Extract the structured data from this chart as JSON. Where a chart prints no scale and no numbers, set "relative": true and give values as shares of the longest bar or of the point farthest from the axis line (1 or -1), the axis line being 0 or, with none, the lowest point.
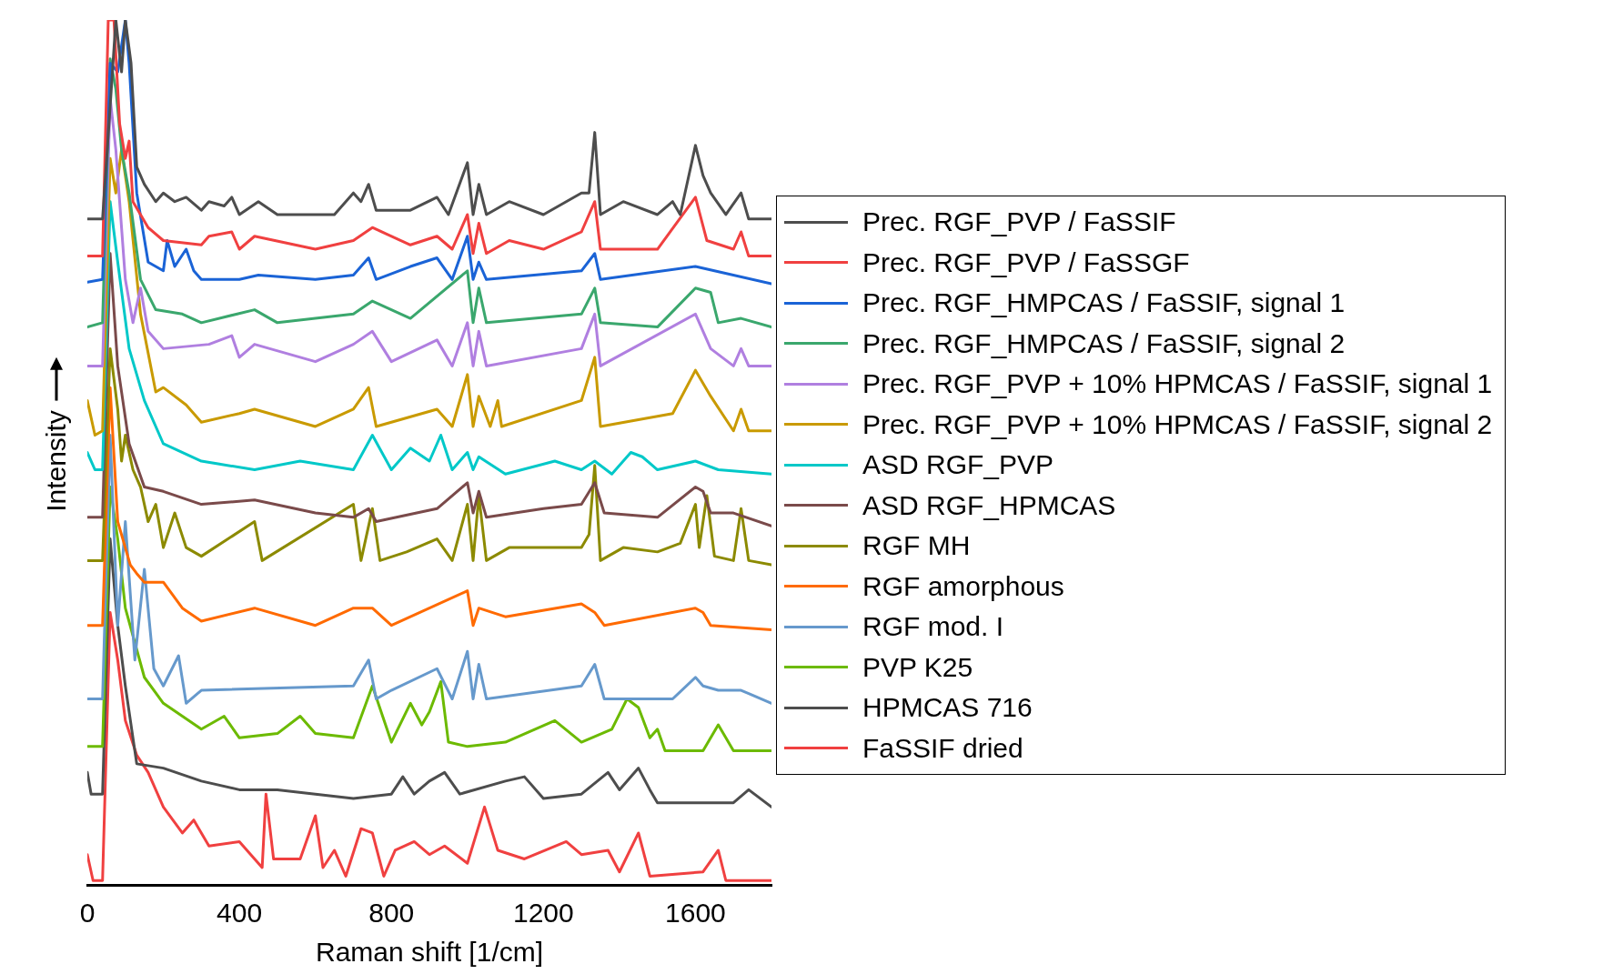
{
  "chart_data": {
    "type": "line",
    "relative": true,
    "xlabel": "Raman shift [1/cm]",
    "ylabel": "Intensity",
    "xlim": [
      0,
      1800
    ],
    "xticks": [
      0,
      400,
      800,
      1200,
      1600
    ],
    "grid": false,
    "legend": "right",
    "marker": "none",
    "line_style": "solid",
    "series": [
      {
        "name": "Prec. RGF_PVP / FaSSIF",
        "color": "#4d4d4d",
        "x": [
          0,
          40,
          60,
          75,
          90,
          100,
          115,
          130,
          150,
          180,
          200,
          230,
          260,
          300,
          320,
          360,
          380,
          400,
          450,
          500,
          600,
          650,
          680,
          700,
          720,
          740,
          760,
          850,
          920,
          950,
          1000,
          1015,
          1030,
          1050,
          1110,
          1200,
          1260,
          1300,
          1320,
          1335,
          1350,
          1410,
          1500,
          1540,
          1560,
          1600,
          1620,
          1640,
          1680,
          1720,
          1740,
          1800
        ],
        "values": [
          0.77,
          0.77,
          0.9,
          1.0,
          0.94,
          1.0,
          0.95,
          0.83,
          0.81,
          0.79,
          0.8,
          0.79,
          0.795,
          0.78,
          0.79,
          0.785,
          0.795,
          0.775,
          0.79,
          0.775,
          0.775,
          0.775,
          0.79,
          0.8,
          0.79,
          0.81,
          0.78,
          0.78,
          0.795,
          0.775,
          0.835,
          0.775,
          0.81,
          0.775,
          0.79,
          0.775,
          0.79,
          0.8,
          0.8,
          0.87,
          0.775,
          0.79,
          0.775,
          0.79,
          0.775,
          0.855,
          0.82,
          0.8,
          0.775,
          0.8,
          0.77,
          0.77
        ]
      },
      {
        "name": "Prec. RGF_PVP / FaSSGF",
        "color": "#f04040",
        "x": [
          0,
          40,
          55,
          70,
          85,
          100,
          110,
          120,
          160,
          200,
          300,
          320,
          380,
          400,
          440,
          600,
          700,
          750,
          850,
          920,
          960,
          1000,
          1015,
          1030,
          1050,
          1110,
          1200,
          1300,
          1335,
          1350,
          1500,
          1600,
          1630,
          1700,
          1720,
          1740,
          1800
        ],
        "values": [
          0.727,
          0.727,
          1.0,
          1.0,
          0.88,
          0.84,
          0.86,
          0.79,
          0.76,
          0.745,
          0.74,
          0.75,
          0.755,
          0.735,
          0.75,
          0.735,
          0.745,
          0.76,
          0.74,
          0.75,
          0.735,
          0.775,
          0.73,
          0.765,
          0.73,
          0.745,
          0.735,
          0.755,
          0.79,
          0.735,
          0.735,
          0.795,
          0.745,
          0.735,
          0.755,
          0.727,
          0.727
        ]
      },
      {
        "name": "Prec. RGF_HMPCAS / FaSSIF, signal 1",
        "color": "#1a63d6",
        "x": [
          0,
          40,
          60,
          80,
          100,
          110,
          130,
          160,
          200,
          210,
          230,
          260,
          280,
          300,
          400,
          450,
          600,
          700,
          740,
          760,
          850,
          920,
          960,
          1000,
          1015,
          1030,
          1050,
          1300,
          1335,
          1350,
          1600,
          1800
        ],
        "values": [
          0.697,
          0.7,
          0.95,
          0.94,
          1.0,
          0.95,
          0.8,
          0.72,
          0.71,
          0.745,
          0.715,
          0.735,
          0.71,
          0.7,
          0.7,
          0.705,
          0.7,
          0.705,
          0.725,
          0.7,
          0.715,
          0.725,
          0.7,
          0.75,
          0.7,
          0.72,
          0.7,
          0.71,
          0.73,
          0.7,
          0.715,
          0.695
        ]
      },
      {
        "name": "Prec. RGF_HMPCAS / FaSSIF, signal 2",
        "color": "#3aa76d",
        "x": [
          0,
          40,
          60,
          75,
          90,
          110,
          140,
          180,
          250,
          300,
          440,
          500,
          700,
          750,
          850,
          1000,
          1015,
          1030,
          1050,
          1300,
          1335,
          1350,
          1500,
          1600,
          1640,
          1660,
          1720,
          1800
        ],
        "values": [
          0.645,
          0.65,
          0.955,
          0.92,
          0.85,
          0.8,
          0.7,
          0.665,
          0.66,
          0.65,
          0.665,
          0.65,
          0.66,
          0.675,
          0.655,
          0.71,
          0.65,
          0.69,
          0.65,
          0.66,
          0.69,
          0.65,
          0.645,
          0.69,
          0.685,
          0.65,
          0.655,
          0.645
        ]
      },
      {
        "name": "Prec. RGF_PVP + 10% HPMCAS / FaSSIF, signal 1",
        "color": "#b07fe0",
        "x": [
          0,
          40,
          60,
          75,
          100,
          120,
          140,
          160,
          200,
          320,
          380,
          400,
          440,
          600,
          700,
          750,
          800,
          920,
          960,
          1000,
          1015,
          1030,
          1050,
          1300,
          1335,
          1350,
          1600,
          1640,
          1700,
          1720,
          1740,
          1800
        ],
        "values": [
          0.6,
          0.6,
          0.91,
          0.85,
          0.7,
          0.65,
          0.69,
          0.64,
          0.62,
          0.625,
          0.635,
          0.61,
          0.625,
          0.605,
          0.625,
          0.64,
          0.605,
          0.63,
          0.6,
          0.65,
          0.6,
          0.64,
          0.6,
          0.62,
          0.66,
          0.6,
          0.66,
          0.62,
          0.6,
          0.62,
          0.6,
          0.6
        ]
      },
      {
        "name": "Prec. RGF_PVP + 10% HPMCAS / FaSSIF, signal 2",
        "color": "#c99a00",
        "x": [
          0,
          20,
          40,
          60,
          75,
          90,
          110,
          140,
          180,
          200,
          260,
          300,
          400,
          440,
          600,
          700,
          740,
          760,
          920,
          960,
          1000,
          1015,
          1030,
          1060,
          1080,
          1090,
          1300,
          1335,
          1350,
          1540,
          1600,
          1640,
          1700,
          1720,
          1740,
          1800
        ],
        "values": [
          0.56,
          0.52,
          0.525,
          0.84,
          0.8,
          0.85,
          0.79,
          0.66,
          0.57,
          0.575,
          0.555,
          0.535,
          0.545,
          0.55,
          0.53,
          0.55,
          0.575,
          0.53,
          0.55,
          0.53,
          0.59,
          0.53,
          0.565,
          0.53,
          0.56,
          0.53,
          0.56,
          0.61,
          0.53,
          0.545,
          0.595,
          0.565,
          0.525,
          0.55,
          0.525,
          0.525
        ]
      },
      {
        "name": "ASD RGF_PVP",
        "color": "#00c8c8",
        "x": [
          0,
          20,
          40,
          60,
          80,
          110,
          150,
          200,
          300,
          440,
          560,
          700,
          750,
          800,
          850,
          900,
          930,
          960,
          1000,
          1015,
          1030,
          1100,
          1230,
          1300,
          1335,
          1380,
          1430,
          1460,
          1500,
          1600,
          1660,
          1800
        ],
        "values": [
          0.5,
          0.48,
          0.48,
          0.79,
          0.72,
          0.62,
          0.56,
          0.51,
          0.49,
          0.48,
          0.49,
          0.48,
          0.52,
          0.48,
          0.505,
          0.49,
          0.52,
          0.48,
          0.5,
          0.48,
          0.495,
          0.475,
          0.49,
          0.48,
          0.49,
          0.475,
          0.5,
          0.495,
          0.48,
          0.49,
          0.48,
          0.475
        ]
      },
      {
        "name": "ASD RGF_HPMCAS",
        "color": "#7a4a4a",
        "x": [
          0,
          40,
          60,
          80,
          110,
          150,
          200,
          300,
          440,
          600,
          700,
          740,
          760,
          920,
          1000,
          1015,
          1030,
          1050,
          1200,
          1300,
          1335,
          1360,
          1500,
          1600,
          1620,
          1640,
          1700,
          1800
        ],
        "values": [
          0.425,
          0.425,
          0.73,
          0.6,
          0.51,
          0.46,
          0.455,
          0.44,
          0.445,
          0.43,
          0.425,
          0.435,
          0.42,
          0.435,
          0.465,
          0.43,
          0.455,
          0.425,
          0.435,
          0.44,
          0.465,
          0.43,
          0.425,
          0.46,
          0.455,
          0.43,
          0.43,
          0.415
        ]
      },
      {
        "name": "RGF MH",
        "color": "#8c8a00",
        "x": [
          0,
          40,
          60,
          80,
          90,
          100,
          120,
          140,
          160,
          180,
          200,
          230,
          260,
          300,
          440,
          460,
          700,
          720,
          750,
          770,
          840,
          920,
          960,
          1000,
          1015,
          1030,
          1050,
          1110,
          1260,
          1300,
          1320,
          1335,
          1350,
          1410,
          1500,
          1560,
          1600,
          1610,
          1630,
          1650,
          1700,
          1720,
          1740,
          1800
        ],
        "values": [
          0.375,
          0.375,
          0.62,
          0.55,
          0.49,
          0.52,
          0.48,
          0.46,
          0.42,
          0.44,
          0.39,
          0.43,
          0.39,
          0.38,
          0.42,
          0.375,
          0.44,
          0.375,
          0.435,
          0.375,
          0.385,
          0.4,
          0.375,
          0.44,
          0.375,
          0.45,
          0.375,
          0.39,
          0.39,
          0.39,
          0.405,
          0.485,
          0.375,
          0.39,
          0.385,
          0.395,
          0.44,
          0.39,
          0.45,
          0.38,
          0.375,
          0.435,
          0.375,
          0.37
        ]
      },
      {
        "name": "RGF amorphous",
        "color": "#ff6a00",
        "x": [
          0,
          40,
          60,
          80,
          113,
          130,
          150,
          200,
          250,
          300,
          440,
          600,
          700,
          750,
          800,
          1000,
          1015,
          1030,
          1100,
          1300,
          1335,
          1360,
          1600,
          1620,
          1640,
          1800
        ],
        "values": [
          0.3,
          0.3,
          0.575,
          0.42,
          0.37,
          0.36,
          0.35,
          0.35,
          0.32,
          0.305,
          0.32,
          0.3,
          0.32,
          0.32,
          0.3,
          0.34,
          0.3,
          0.32,
          0.31,
          0.325,
          0.315,
          0.3,
          0.32,
          0.315,
          0.3,
          0.295
        ]
      },
      {
        "name": "RGF mod. I",
        "color": "#6699cc",
        "x": [
          0,
          40,
          60,
          80,
          100,
          125,
          150,
          175,
          200,
          240,
          260,
          300,
          700,
          740,
          760,
          800,
          920,
          960,
          1000,
          1015,
          1030,
          1050,
          1300,
          1335,
          1360,
          1540,
          1600,
          1620,
          1660,
          1720,
          1800
        ],
        "values": [
          0.215,
          0.215,
          0.52,
          0.3,
          0.42,
          0.26,
          0.365,
          0.25,
          0.23,
          0.265,
          0.21,
          0.225,
          0.23,
          0.26,
          0.215,
          0.225,
          0.25,
          0.215,
          0.27,
          0.215,
          0.255,
          0.215,
          0.23,
          0.255,
          0.215,
          0.215,
          0.24,
          0.23,
          0.225,
          0.225,
          0.21
        ]
      },
      {
        "name": "PVP K25",
        "color": "#6cba00",
        "x": [
          0,
          40,
          60,
          80,
          100,
          150,
          200,
          300,
          360,
          400,
          500,
          560,
          600,
          700,
          750,
          800,
          850,
          880,
          900,
          930,
          950,
          1000,
          1100,
          1230,
          1300,
          1380,
          1420,
          1450,
          1480,
          1500,
          1520,
          1620,
          1660,
          1700,
          1800
        ],
        "values": [
          0.16,
          0.16,
          0.46,
          0.4,
          0.32,
          0.24,
          0.21,
          0.18,
          0.195,
          0.17,
          0.175,
          0.195,
          0.175,
          0.17,
          0.23,
          0.165,
          0.21,
          0.185,
          0.2,
          0.235,
          0.165,
          0.16,
          0.165,
          0.19,
          0.165,
          0.18,
          0.215,
          0.205,
          0.17,
          0.18,
          0.155,
          0.155,
          0.185,
          0.155,
          0.155
        ]
      },
      {
        "name": "HPMCAS 716",
        "color": "#4d4d4d",
        "x": [
          0,
          10,
          40,
          60,
          80,
          100,
          130,
          200,
          300,
          400,
          500,
          600,
          700,
          800,
          830,
          860,
          900,
          940,
          980,
          1100,
          1150,
          1200,
          1300,
          1370,
          1400,
          1450,
          1480,
          1500,
          1700,
          1740,
          1800
        ],
        "values": [
          0.13,
          0.105,
          0.105,
          0.4,
          0.3,
          0.23,
          0.14,
          0.135,
          0.12,
          0.11,
          0.11,
          0.105,
          0.1,
          0.105,
          0.125,
          0.105,
          0.12,
          0.13,
          0.105,
          0.12,
          0.125,
          0.1,
          0.105,
          0.13,
          0.11,
          0.135,
          0.11,
          0.095,
          0.095,
          0.11,
          0.09
        ]
      },
      {
        "name": "FaSSIF dried",
        "color": "#f04040",
        "x": [
          0,
          15,
          40,
          60,
          80,
          100,
          130,
          160,
          200,
          250,
          280,
          320,
          400,
          460,
          470,
          490,
          560,
          600,
          620,
          650,
          680,
          720,
          750,
          780,
          810,
          860,
          900,
          940,
          1000,
          1045,
          1080,
          1150,
          1260,
          1300,
          1370,
          1400,
          1450,
          1480,
          1620,
          1660,
          1680,
          1800
        ],
        "values": [
          0.035,
          0.005,
          0.005,
          0.315,
          0.26,
          0.19,
          0.15,
          0.13,
          0.09,
          0.06,
          0.075,
          0.045,
          0.05,
          0.02,
          0.105,
          0.03,
          0.03,
          0.08,
          0.02,
          0.04,
          0.01,
          0.065,
          0.06,
          0.01,
          0.04,
          0.05,
          0.035,
          0.045,
          0.025,
          0.09,
          0.04,
          0.03,
          0.05,
          0.035,
          0.04,
          0.015,
          0.06,
          0.01,
          0.015,
          0.04,
          0.005,
          0.005
        ]
      }
    ]
  }
}
